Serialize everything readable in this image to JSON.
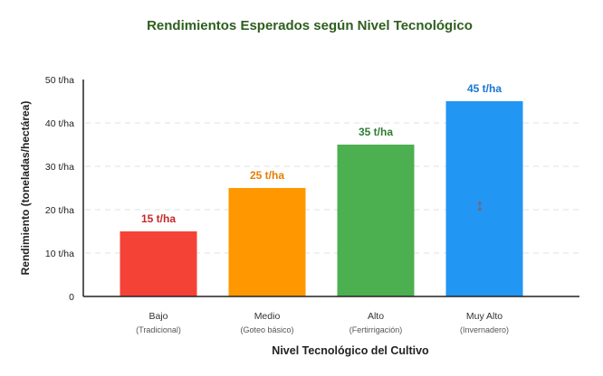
{
  "chart_data": {
    "type": "bar",
    "title": "Rendimientos Esperados según Nivel Tecnológico",
    "xlabel": "Nivel Tecnológico del Cultivo",
    "ylabel": "Rendimiento (toneladas/hectárea)",
    "ylim": [
      0,
      50
    ],
    "yticks": [
      {
        "value": 0,
        "label": "0"
      },
      {
        "value": 10,
        "label": "10 t/ha"
      },
      {
        "value": 20,
        "label": "20 t/ha"
      },
      {
        "value": 30,
        "label": "30 t/ha"
      },
      {
        "value": 40,
        "label": "40 t/ha"
      },
      {
        "value": 50,
        "label": "50 t/ha"
      }
    ],
    "grid": true,
    "categories": [
      "Bajo",
      "Medio",
      "Alto",
      "Muy Alto"
    ],
    "subcategories": [
      "(Tradicional)",
      "(Goteo básico)",
      "(Fertirrigación)",
      "(Invernadero)"
    ],
    "values": [
      15,
      25,
      35,
      45
    ],
    "value_labels": [
      "15 t/ha",
      "25 t/ha",
      "35 t/ha",
      "45 t/ha"
    ],
    "bar_colors": [
      "#f44336",
      "#ff9800",
      "#4caf50",
      "#2196f3"
    ],
    "label_colors": [
      "#c62828",
      "#e67e00",
      "#2e7d32",
      "#1976d2"
    ],
    "title_color": "#2e5e1e",
    "marker_icon": "up-down-arrow-icon",
    "marker_glyph": "↕",
    "marker_bar_index": 3
  }
}
